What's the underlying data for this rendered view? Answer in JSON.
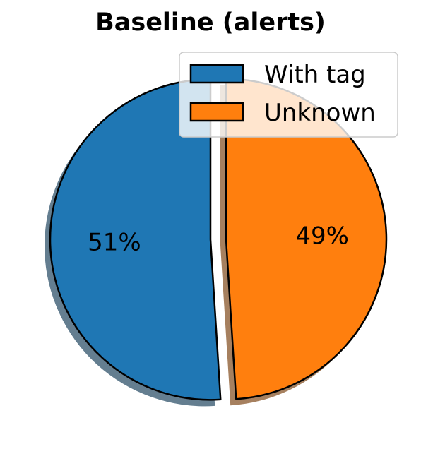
{
  "chart_data": {
    "type": "pie",
    "title": "Baseline (alerts)",
    "categories": [
      "With tag",
      "Unknown"
    ],
    "values": [
      51,
      49
    ],
    "labels": [
      "51%",
      "49%"
    ],
    "colors": [
      "#1f77b4",
      "#ff7f0e"
    ],
    "explode": true,
    "shadow": true,
    "legend": {
      "placement": "top-right",
      "entries": [
        "With tag",
        "Unknown"
      ]
    }
  }
}
